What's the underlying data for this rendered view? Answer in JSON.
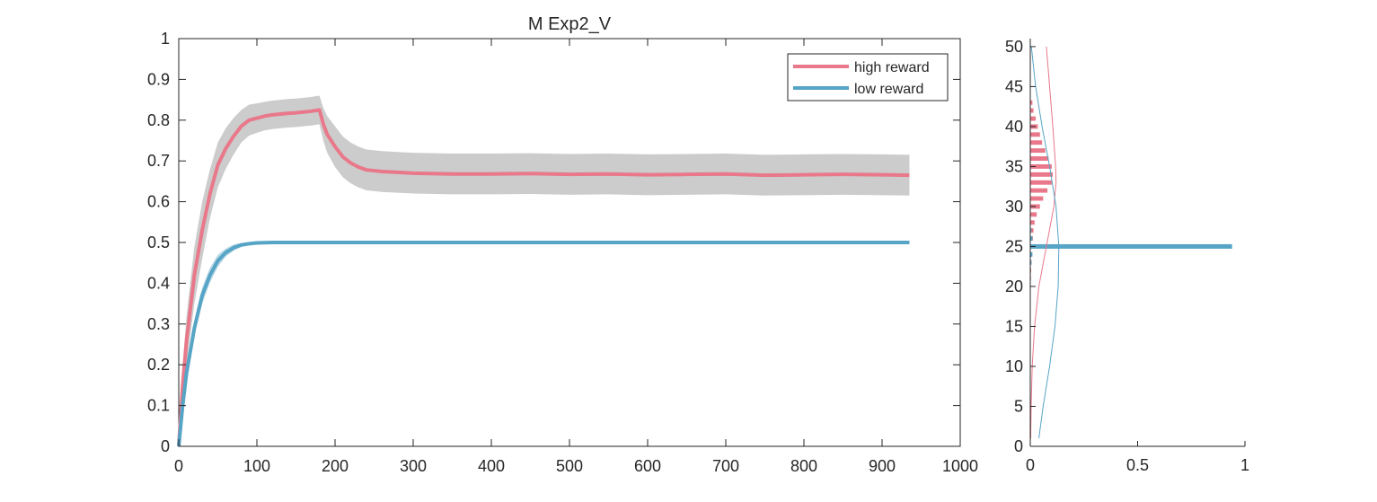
{
  "colors": {
    "high": "#E8788A",
    "low": "#56A4C6",
    "band": "#CCCCCC",
    "axis": "#262626"
  },
  "chart_data": [
    {
      "type": "line",
      "title": "M  Exp2_V",
      "xlabel": "",
      "ylabel": "",
      "xlim": [
        0,
        1000
      ],
      "ylim": [
        0,
        1
      ],
      "xticks": [
        "0",
        "100",
        "200",
        "300",
        "400",
        "500",
        "600",
        "700",
        "800",
        "900",
        "1000"
      ],
      "yticks": [
        "0",
        "0.1",
        "0.2",
        "0.3",
        "0.4",
        "0.5",
        "0.6",
        "0.7",
        "0.8",
        "0.9",
        "1"
      ],
      "grid": false,
      "legend_position": "top-right",
      "legend": [
        "high reward",
        "low reward"
      ],
      "series": [
        {
          "name": "high reward",
          "x": [
            0,
            5,
            10,
            20,
            30,
            40,
            50,
            60,
            70,
            80,
            90,
            100,
            110,
            120,
            130,
            140,
            150,
            160,
            170,
            180,
            185,
            190,
            200,
            210,
            220,
            230,
            240,
            260,
            280,
            300,
            350,
            400,
            450,
            500,
            550,
            600,
            650,
            700,
            750,
            800,
            850,
            900,
            935
          ],
          "y": [
            0,
            0.15,
            0.26,
            0.42,
            0.53,
            0.62,
            0.69,
            0.73,
            0.76,
            0.785,
            0.8,
            0.805,
            0.81,
            0.813,
            0.815,
            0.817,
            0.818,
            0.82,
            0.822,
            0.825,
            0.79,
            0.765,
            0.735,
            0.71,
            0.695,
            0.685,
            0.678,
            0.674,
            0.672,
            0.67,
            0.668,
            0.668,
            0.669,
            0.667,
            0.668,
            0.666,
            0.667,
            0.668,
            0.665,
            0.666,
            0.667,
            0.666,
            0.665
          ],
          "band_halfwidth": [
            0,
            0.05,
            0.06,
            0.07,
            0.07,
            0.06,
            0.055,
            0.05,
            0.045,
            0.04,
            0.038,
            0.036,
            0.035,
            0.035,
            0.035,
            0.035,
            0.035,
            0.035,
            0.035,
            0.035,
            0.04,
            0.045,
            0.05,
            0.05,
            0.05,
            0.05,
            0.05,
            0.05,
            0.05,
            0.05,
            0.05,
            0.05,
            0.05,
            0.05,
            0.05,
            0.05,
            0.05,
            0.05,
            0.05,
            0.05,
            0.05,
            0.05,
            0.05
          ]
        },
        {
          "name": "low reward",
          "x": [
            0,
            5,
            10,
            20,
            30,
            40,
            50,
            60,
            70,
            80,
            90,
            100,
            120,
            150,
            200,
            300,
            400,
            500,
            600,
            700,
            800,
            900,
            935
          ],
          "y": [
            0,
            0.1,
            0.18,
            0.29,
            0.37,
            0.42,
            0.455,
            0.475,
            0.487,
            0.494,
            0.497,
            0.499,
            0.5,
            0.5,
            0.5,
            0.5,
            0.5,
            0.5,
            0.5,
            0.5,
            0.5,
            0.5,
            0.5
          ],
          "band_halfwidth": [
            0,
            0.015,
            0.02,
            0.02,
            0.02,
            0.018,
            0.015,
            0.01,
            0.008,
            0.005,
            0.003,
            0.002,
            0.001,
            0.001,
            0.001,
            0.001,
            0.001,
            0.001,
            0.001,
            0.001,
            0.001,
            0.001,
            0.001
          ]
        }
      ]
    },
    {
      "type": "bar",
      "title": "",
      "xlabel": "",
      "ylabel": "",
      "orientation": "horizontal",
      "xlim": [
        0,
        1
      ],
      "ylim": [
        0,
        51
      ],
      "xticks": [
        "0",
        "0.5",
        "1"
      ],
      "yticks": [
        "0",
        "5",
        "10",
        "15",
        "20",
        "25",
        "30",
        "35",
        "40",
        "45",
        "50"
      ],
      "grid": false,
      "series": [
        {
          "name": "high reward",
          "bins": [
            21,
            22,
            23,
            24,
            25,
            26,
            27,
            28,
            29,
            30,
            31,
            32,
            33,
            34,
            35,
            36,
            37,
            38,
            39,
            40,
            41,
            42,
            43
          ],
          "values": [
            0.003,
            0.004,
            0.006,
            0.008,
            0.01,
            0.012,
            0.015,
            0.02,
            0.03,
            0.045,
            0.06,
            0.08,
            0.1,
            0.105,
            0.1,
            0.085,
            0.07,
            0.055,
            0.045,
            0.035,
            0.025,
            0.015,
            0.01
          ],
          "fit_y": [
            1,
            5,
            10,
            15,
            20,
            25,
            30,
            33,
            35,
            40,
            45,
            50
          ],
          "fit_x": [
            0.002,
            0.004,
            0.009,
            0.02,
            0.04,
            0.075,
            0.11,
            0.12,
            0.118,
            0.105,
            0.09,
            0.075
          ]
        },
        {
          "name": "low reward",
          "bins": [
            23,
            24,
            25,
            26,
            27
          ],
          "values": [
            0.005,
            0.01,
            0.94,
            0.01,
            0.005
          ],
          "fit_y": [
            1,
            5,
            10,
            15,
            20,
            25,
            30,
            35,
            40,
            45,
            50
          ],
          "fit_x": [
            0.04,
            0.06,
            0.09,
            0.115,
            0.13,
            0.133,
            0.12,
            0.09,
            0.055,
            0.025,
            0.005
          ]
        }
      ]
    }
  ]
}
